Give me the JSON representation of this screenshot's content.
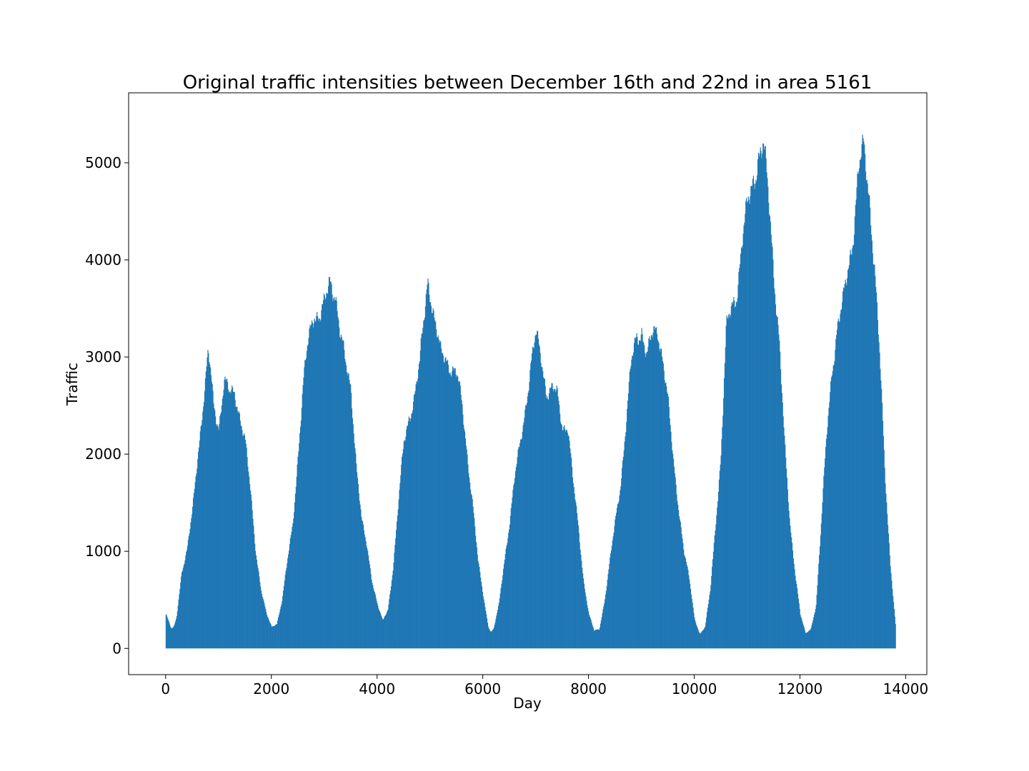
{
  "chart_data": {
    "type": "bar",
    "title": "Original traffic intensities between December 16th and 22nd in area 5161",
    "xlabel": "Day",
    "ylabel": "Traffic",
    "xlim": [
      -700,
      14400
    ],
    "ylim": [
      -270,
      5720
    ],
    "xticks": [
      0,
      2000,
      4000,
      6000,
      8000,
      10000,
      12000,
      14000
    ],
    "yticks": [
      0,
      1000,
      2000,
      3000,
      4000,
      5000
    ],
    "grid": false,
    "legend": "none",
    "color": "#1f77b4",
    "x_step": 12,
    "series": [
      {
        "x_start": 0,
        "x_end": 13800,
        "envelope": [
          [
            0,
            350
          ],
          [
            100,
            200
          ],
          [
            150,
            220
          ],
          [
            200,
            320
          ],
          [
            300,
            800
          ],
          [
            400,
            1000
          ],
          [
            500,
            1400
          ],
          [
            600,
            2000
          ],
          [
            700,
            2500
          ],
          [
            800,
            3000
          ],
          [
            850,
            2800
          ],
          [
            900,
            2500
          ],
          [
            1000,
            2300
          ],
          [
            1100,
            2750
          ],
          [
            1200,
            2600
          ],
          [
            1300,
            2650
          ],
          [
            1400,
            2400
          ],
          [
            1500,
            2100
          ],
          [
            1600,
            1600
          ],
          [
            1700,
            1000
          ],
          [
            1800,
            600
          ],
          [
            1900,
            350
          ],
          [
            2000,
            220
          ],
          [
            2100,
            260
          ],
          [
            2200,
            500
          ],
          [
            2300,
            900
          ],
          [
            2400,
            1300
          ],
          [
            2500,
            2000
          ],
          [
            2600,
            2700
          ],
          [
            2700,
            3200
          ],
          [
            2800,
            3500
          ],
          [
            2900,
            3400
          ],
          [
            3000,
            3500
          ],
          [
            3100,
            3800
          ],
          [
            3200,
            3700
          ],
          [
            3300,
            3200
          ],
          [
            3400,
            2900
          ],
          [
            3500,
            2700
          ],
          [
            3600,
            1900
          ],
          [
            3700,
            1300
          ],
          [
            3800,
            1050
          ],
          [
            3900,
            700
          ],
          [
            4000,
            450
          ],
          [
            4100,
            280
          ],
          [
            4200,
            400
          ],
          [
            4300,
            850
          ],
          [
            4400,
            1500
          ],
          [
            4500,
            2100
          ],
          [
            4600,
            2400
          ],
          [
            4700,
            2600
          ],
          [
            4800,
            2900
          ],
          [
            4900,
            3500
          ],
          [
            4950,
            3830
          ],
          [
            5000,
            3700
          ],
          [
            5100,
            3300
          ],
          [
            5200,
            3000
          ],
          [
            5300,
            3000
          ],
          [
            5400,
            2900
          ],
          [
            5500,
            2800
          ],
          [
            5600,
            2500
          ],
          [
            5700,
            2000
          ],
          [
            5800,
            1500
          ],
          [
            5900,
            900
          ],
          [
            6000,
            550
          ],
          [
            6100,
            220
          ],
          [
            6150,
            170
          ],
          [
            6200,
            200
          ],
          [
            6300,
            450
          ],
          [
            6400,
            900
          ],
          [
            6500,
            1300
          ],
          [
            6600,
            1750
          ],
          [
            6700,
            2100
          ],
          [
            6800,
            2500
          ],
          [
            6900,
            2900
          ],
          [
            7000,
            3200
          ],
          [
            7100,
            3000
          ],
          [
            7200,
            2650
          ],
          [
            7300,
            2650
          ],
          [
            7400,
            2600
          ],
          [
            7500,
            2300
          ],
          [
            7600,
            2300
          ],
          [
            7700,
            1700
          ],
          [
            7800,
            1250
          ],
          [
            7900,
            700
          ],
          [
            8000,
            350
          ],
          [
            8100,
            180
          ],
          [
            8200,
            200
          ],
          [
            8300,
            500
          ],
          [
            8400,
            900
          ],
          [
            8500,
            1300
          ],
          [
            8600,
            1700
          ],
          [
            8700,
            2300
          ],
          [
            8800,
            2900
          ],
          [
            8900,
            3200
          ],
          [
            9000,
            3300
          ],
          [
            9100,
            3000
          ],
          [
            9200,
            3200
          ],
          [
            9300,
            3300
          ],
          [
            9400,
            3000
          ],
          [
            9500,
            2500
          ],
          [
            9600,
            1900
          ],
          [
            9700,
            1450
          ],
          [
            9800,
            1000
          ],
          [
            9900,
            700
          ],
          [
            10000,
            300
          ],
          [
            10100,
            150
          ],
          [
            10200,
            220
          ],
          [
            10300,
            600
          ],
          [
            10400,
            1300
          ],
          [
            10500,
            2000
          ],
          [
            10600,
            3250
          ],
          [
            10700,
            3500
          ],
          [
            10800,
            3700
          ],
          [
            10900,
            4200
          ],
          [
            11000,
            4500
          ],
          [
            11100,
            4800
          ],
          [
            11200,
            5100
          ],
          [
            11300,
            5150
          ],
          [
            11400,
            4600
          ],
          [
            11500,
            3900
          ],
          [
            11600,
            3200
          ],
          [
            11700,
            2100
          ],
          [
            11800,
            1300
          ],
          [
            11900,
            800
          ],
          [
            12000,
            350
          ],
          [
            12100,
            150
          ],
          [
            12200,
            200
          ],
          [
            12300,
            450
          ],
          [
            12400,
            1300
          ],
          [
            12500,
            2200
          ],
          [
            12600,
            2900
          ],
          [
            12700,
            3300
          ],
          [
            12800,
            3500
          ],
          [
            12900,
            3900
          ],
          [
            13000,
            4300
          ],
          [
            13100,
            4900
          ],
          [
            13200,
            5100
          ],
          [
            13300,
            4700
          ],
          [
            13400,
            4000
          ],
          [
            13500,
            3000
          ],
          [
            13600,
            1800
          ],
          [
            13700,
            900
          ],
          [
            13800,
            250
          ]
        ]
      }
    ]
  }
}
